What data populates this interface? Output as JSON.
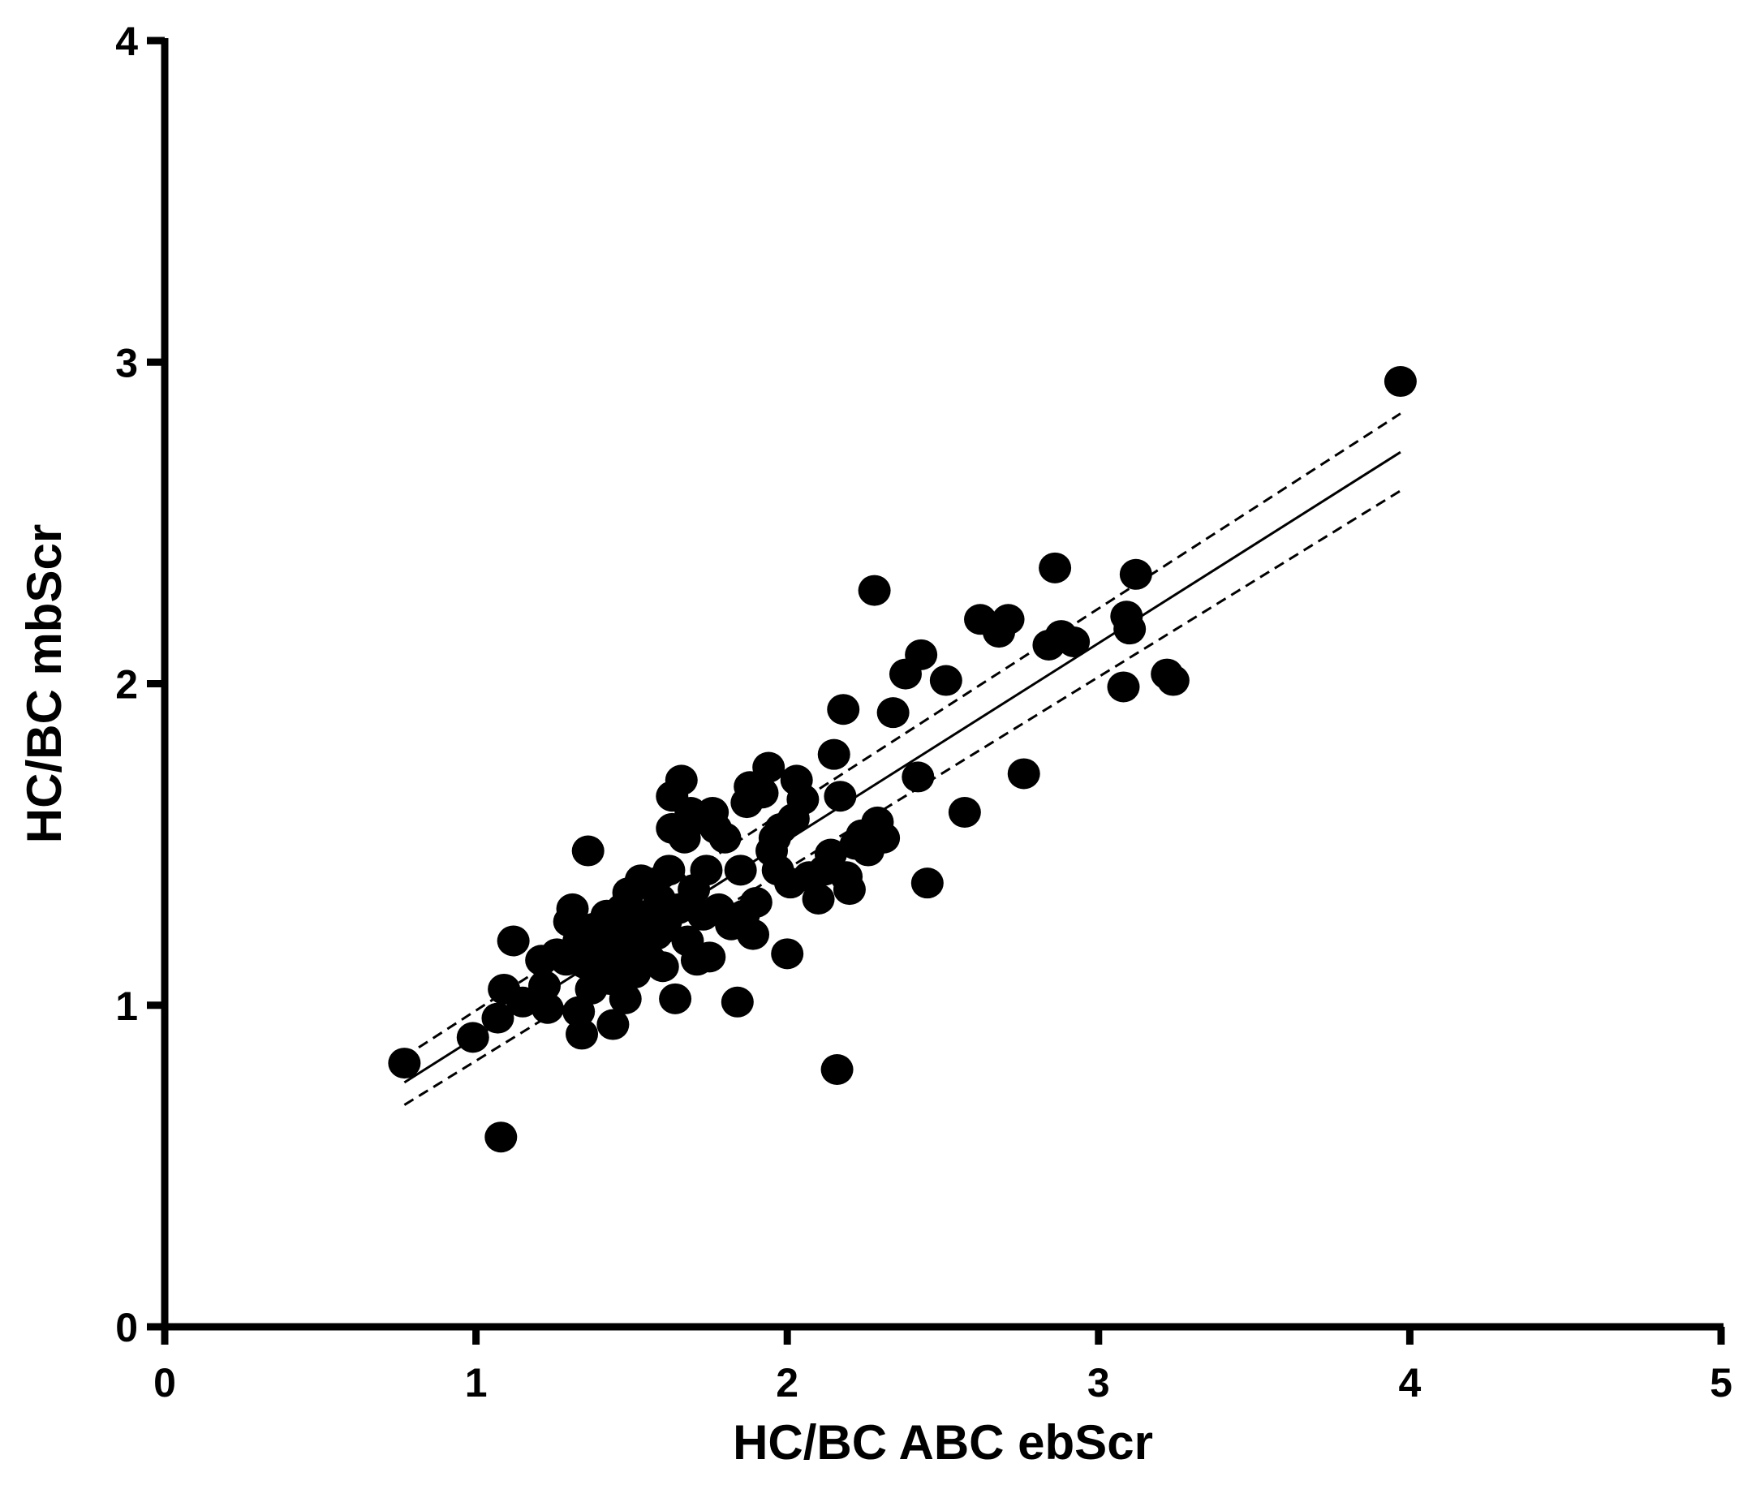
{
  "chart_data": {
    "type": "scatter",
    "title": "",
    "xlabel": "HC/BC ABC ebScr",
    "ylabel": "HC/BC mbScr",
    "xlim": [
      0,
      5
    ],
    "ylim": [
      0,
      4
    ],
    "x_ticks": [
      "0",
      "1",
      "2",
      "3",
      "4",
      "5"
    ],
    "y_ticks": [
      "0",
      "1",
      "2",
      "3",
      "4"
    ],
    "grid": false,
    "legend": "none",
    "colors": {
      "points": "#000000",
      "axes": "#000000",
      "lines": "#000000"
    },
    "points": [
      {
        "x": 0.77,
        "y": 0.82
      },
      {
        "x": 0.99,
        "y": 0.9
      },
      {
        "x": 1.07,
        "y": 0.96
      },
      {
        "x": 1.09,
        "y": 1.05
      },
      {
        "x": 1.08,
        "y": 0.59
      },
      {
        "x": 1.12,
        "y": 1.2
      },
      {
        "x": 1.15,
        "y": 1.01
      },
      {
        "x": 1.21,
        "y": 1.14
      },
      {
        "x": 1.22,
        "y": 1.06
      },
      {
        "x": 1.23,
        "y": 0.99
      },
      {
        "x": 1.26,
        "y": 1.16
      },
      {
        "x": 1.29,
        "y": 1.14
      },
      {
        "x": 1.3,
        "y": 1.26
      },
      {
        "x": 1.31,
        "y": 1.3
      },
      {
        "x": 1.33,
        "y": 1.2
      },
      {
        "x": 1.33,
        "y": 0.98
      },
      {
        "x": 1.34,
        "y": 0.91
      },
      {
        "x": 1.35,
        "y": 1.13
      },
      {
        "x": 1.36,
        "y": 1.48
      },
      {
        "x": 1.37,
        "y": 1.05
      },
      {
        "x": 1.38,
        "y": 1.24
      },
      {
        "x": 1.39,
        "y": 1.12
      },
      {
        "x": 1.4,
        "y": 1.18
      },
      {
        "x": 1.42,
        "y": 1.28
      },
      {
        "x": 1.43,
        "y": 1.08
      },
      {
        "x": 1.44,
        "y": 0.94
      },
      {
        "x": 1.45,
        "y": 1.22
      },
      {
        "x": 1.46,
        "y": 1.15
      },
      {
        "x": 1.47,
        "y": 1.3
      },
      {
        "x": 1.48,
        "y": 1.02
      },
      {
        "x": 1.49,
        "y": 1.35
      },
      {
        "x": 1.5,
        "y": 1.2
      },
      {
        "x": 1.51,
        "y": 1.1
      },
      {
        "x": 1.52,
        "y": 1.25
      },
      {
        "x": 1.53,
        "y": 1.39
      },
      {
        "x": 1.54,
        "y": 1.17
      },
      {
        "x": 1.55,
        "y": 1.28
      },
      {
        "x": 1.56,
        "y": 1.14
      },
      {
        "x": 1.57,
        "y": 1.38
      },
      {
        "x": 1.58,
        "y": 1.22
      },
      {
        "x": 1.59,
        "y": 1.33
      },
      {
        "x": 1.6,
        "y": 1.12
      },
      {
        "x": 1.61,
        "y": 1.26
      },
      {
        "x": 1.62,
        "y": 1.42
      },
      {
        "x": 1.63,
        "y": 1.55
      },
      {
        "x": 1.63,
        "y": 1.65
      },
      {
        "x": 1.64,
        "y": 1.02
      },
      {
        "x": 1.65,
        "y": 1.3
      },
      {
        "x": 1.66,
        "y": 1.7
      },
      {
        "x": 1.67,
        "y": 1.52
      },
      {
        "x": 1.68,
        "y": 1.2
      },
      {
        "x": 1.69,
        "y": 1.6
      },
      {
        "x": 1.7,
        "y": 1.36
      },
      {
        "x": 1.71,
        "y": 1.14
      },
      {
        "x": 1.72,
        "y": 1.58
      },
      {
        "x": 1.73,
        "y": 1.28
      },
      {
        "x": 1.74,
        "y": 1.42
      },
      {
        "x": 1.75,
        "y": 1.15
      },
      {
        "x": 1.76,
        "y": 1.6
      },
      {
        "x": 1.77,
        "y": 1.55
      },
      {
        "x": 1.78,
        "y": 1.3
      },
      {
        "x": 1.8,
        "y": 1.52
      },
      {
        "x": 1.82,
        "y": 1.25
      },
      {
        "x": 1.84,
        "y": 1.01
      },
      {
        "x": 1.85,
        "y": 1.42
      },
      {
        "x": 1.86,
        "y": 1.28
      },
      {
        "x": 1.87,
        "y": 1.63
      },
      {
        "x": 1.88,
        "y": 1.68
      },
      {
        "x": 1.89,
        "y": 1.22
      },
      {
        "x": 1.9,
        "y": 1.32
      },
      {
        "x": 1.92,
        "y": 1.66
      },
      {
        "x": 1.94,
        "y": 1.74
      },
      {
        "x": 1.95,
        "y": 1.48
      },
      {
        "x": 1.96,
        "y": 1.52
      },
      {
        "x": 1.97,
        "y": 1.42
      },
      {
        "x": 1.98,
        "y": 1.55
      },
      {
        "x": 2.0,
        "y": 1.16
      },
      {
        "x": 2.01,
        "y": 1.38
      },
      {
        "x": 2.02,
        "y": 1.58
      },
      {
        "x": 2.03,
        "y": 1.7
      },
      {
        "x": 2.05,
        "y": 1.64
      },
      {
        "x": 2.07,
        "y": 1.4
      },
      {
        "x": 2.1,
        "y": 1.33
      },
      {
        "x": 2.12,
        "y": 1.42
      },
      {
        "x": 2.14,
        "y": 1.47
      },
      {
        "x": 2.15,
        "y": 1.78
      },
      {
        "x": 2.16,
        "y": 0.8
      },
      {
        "x": 2.17,
        "y": 1.65
      },
      {
        "x": 2.18,
        "y": 1.92
      },
      {
        "x": 2.19,
        "y": 1.4
      },
      {
        "x": 2.2,
        "y": 1.36
      },
      {
        "x": 2.22,
        "y": 1.5
      },
      {
        "x": 2.24,
        "y": 1.53
      },
      {
        "x": 2.26,
        "y": 1.48
      },
      {
        "x": 2.28,
        "y": 2.29
      },
      {
        "x": 2.29,
        "y": 1.57
      },
      {
        "x": 2.31,
        "y": 1.52
      },
      {
        "x": 2.34,
        "y": 1.91
      },
      {
        "x": 2.38,
        "y": 2.03
      },
      {
        "x": 2.42,
        "y": 1.71
      },
      {
        "x": 2.43,
        "y": 2.09
      },
      {
        "x": 2.45,
        "y": 1.38
      },
      {
        "x": 2.51,
        "y": 2.01
      },
      {
        "x": 2.57,
        "y": 1.6
      },
      {
        "x": 2.62,
        "y": 2.2
      },
      {
        "x": 2.68,
        "y": 2.16
      },
      {
        "x": 2.71,
        "y": 2.2
      },
      {
        "x": 2.76,
        "y": 1.72
      },
      {
        "x": 2.84,
        "y": 2.12
      },
      {
        "x": 2.86,
        "y": 2.36
      },
      {
        "x": 2.88,
        "y": 2.15
      },
      {
        "x": 2.92,
        "y": 2.13
      },
      {
        "x": 3.08,
        "y": 1.99
      },
      {
        "x": 3.09,
        "y": 2.21
      },
      {
        "x": 3.1,
        "y": 2.17
      },
      {
        "x": 3.12,
        "y": 2.34
      },
      {
        "x": 3.22,
        "y": 2.03
      },
      {
        "x": 3.24,
        "y": 2.01
      },
      {
        "x": 3.97,
        "y": 2.94
      }
    ],
    "fit_line": {
      "style": "solid",
      "x": [
        0.77,
        3.97
      ],
      "y": [
        0.76,
        2.72
      ]
    },
    "ci_upper": {
      "style": "dashed",
      "x": [
        0.77,
        3.97
      ],
      "y": [
        0.84,
        2.84
      ]
    },
    "ci_lower": {
      "style": "dashed",
      "x": [
        0.77,
        3.97
      ],
      "y": [
        0.69,
        2.6
      ]
    }
  }
}
